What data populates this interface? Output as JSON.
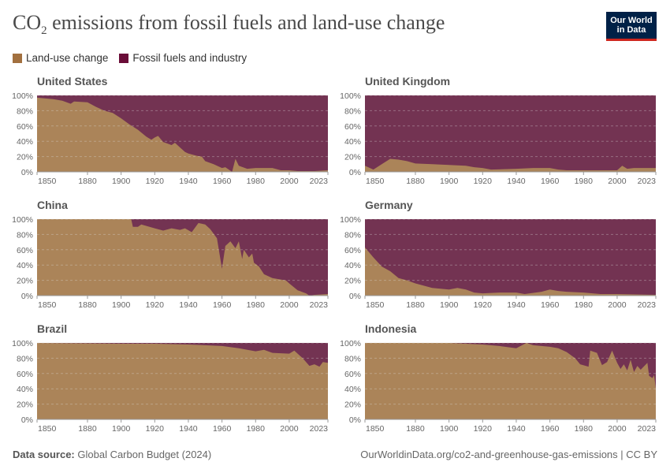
{
  "title_main": "CO",
  "title_sub": "2",
  "title_rest": " emissions from fossil fuels and land-use change",
  "logo": [
    "Our World",
    "in Data"
  ],
  "legend": [
    {
      "label": "Land-use change",
      "color": "#a2703f"
    },
    {
      "label": "Fossil fuels and industry",
      "color": "#6a0d38"
    }
  ],
  "footer": {
    "source_label": "Data source:",
    "source": "Global Carbon Budget (2024)",
    "url": "OurWorldinData.org/co2-and-greenhouse-gas-emissions | CC BY"
  },
  "chart_data": {
    "type": "area",
    "stacked_percent": true,
    "area_colors": {
      "land": "#ab8459",
      "fossil": "#733352"
    },
    "x_ticks": [
      1850,
      1880,
      1900,
      1920,
      1940,
      1960,
      1980,
      2000,
      2023
    ],
    "y_ticks": [
      "0%",
      "20%",
      "40%",
      "60%",
      "80%",
      "100%"
    ],
    "ylim": [
      0,
      100
    ],
    "xlim": [
      1850,
      2023
    ],
    "grid": true,
    "note": "",
    "panels": [
      {
        "title": "United States",
        "land_use_share": [
          [
            1850,
            97
          ],
          [
            1860,
            95
          ],
          [
            1865,
            93
          ],
          [
            1870,
            89
          ],
          [
            1872,
            92
          ],
          [
            1880,
            91
          ],
          [
            1885,
            85
          ],
          [
            1890,
            80
          ],
          [
            1895,
            77
          ],
          [
            1900,
            70
          ],
          [
            1905,
            62
          ],
          [
            1910,
            55
          ],
          [
            1915,
            46
          ],
          [
            1918,
            42
          ],
          [
            1920,
            45
          ],
          [
            1922,
            47
          ],
          [
            1925,
            39
          ],
          [
            1930,
            35
          ],
          [
            1932,
            38
          ],
          [
            1935,
            32
          ],
          [
            1938,
            26
          ],
          [
            1940,
            24
          ],
          [
            1945,
            21
          ],
          [
            1948,
            20
          ],
          [
            1950,
            14
          ],
          [
            1955,
            10
          ],
          [
            1960,
            5
          ],
          [
            1962,
            6
          ],
          [
            1966,
            0
          ],
          [
            1968,
            17
          ],
          [
            1970,
            8
          ],
          [
            1975,
            4
          ],
          [
            1980,
            5
          ],
          [
            1990,
            5
          ],
          [
            1995,
            2
          ],
          [
            2000,
            2
          ],
          [
            2005,
            1
          ],
          [
            2015,
            1
          ],
          [
            2023,
            2
          ]
        ]
      },
      {
        "title": "United Kingdom",
        "land_use_share": [
          [
            1850,
            8
          ],
          [
            1855,
            3
          ],
          [
            1860,
            10
          ],
          [
            1865,
            17
          ],
          [
            1870,
            16
          ],
          [
            1875,
            14
          ],
          [
            1880,
            11
          ],
          [
            1890,
            10
          ],
          [
            1900,
            9
          ],
          [
            1910,
            8
          ],
          [
            1915,
            6
          ],
          [
            1920,
            5
          ],
          [
            1925,
            3
          ],
          [
            1940,
            4
          ],
          [
            1950,
            5
          ],
          [
            1960,
            5
          ],
          [
            1965,
            3
          ],
          [
            1970,
            2
          ],
          [
            1980,
            2
          ],
          [
            2000,
            2
          ],
          [
            2003,
            8
          ],
          [
            2006,
            4
          ],
          [
            2010,
            5
          ],
          [
            2023,
            5
          ]
        ]
      },
      {
        "title": "China",
        "land_use_share": [
          [
            1850,
            100
          ],
          [
            1906,
            100
          ],
          [
            1907,
            90
          ],
          [
            1910,
            90
          ],
          [
            1912,
            93
          ],
          [
            1920,
            88
          ],
          [
            1925,
            85
          ],
          [
            1930,
            88
          ],
          [
            1935,
            86
          ],
          [
            1938,
            88
          ],
          [
            1942,
            83
          ],
          [
            1946,
            95
          ],
          [
            1950,
            93
          ],
          [
            1953,
            87
          ],
          [
            1957,
            75
          ],
          [
            1960,
            35
          ],
          [
            1962,
            65
          ],
          [
            1965,
            71
          ],
          [
            1968,
            62
          ],
          [
            1970,
            71
          ],
          [
            1972,
            48
          ],
          [
            1973,
            60
          ],
          [
            1976,
            50
          ],
          [
            1978,
            55
          ],
          [
            1979,
            43
          ],
          [
            1982,
            38
          ],
          [
            1985,
            28
          ],
          [
            1990,
            23
          ],
          [
            1995,
            21
          ],
          [
            1998,
            20
          ],
          [
            2000,
            16
          ],
          [
            2005,
            7
          ],
          [
            2010,
            3
          ],
          [
            2012,
            0
          ],
          [
            2015,
            1
          ],
          [
            2023,
            2
          ]
        ]
      },
      {
        "title": "Germany",
        "land_use_share": [
          [
            1850,
            63
          ],
          [
            1855,
            50
          ],
          [
            1860,
            38
          ],
          [
            1865,
            32
          ],
          [
            1870,
            23
          ],
          [
            1875,
            20
          ],
          [
            1880,
            16
          ],
          [
            1890,
            10
          ],
          [
            1900,
            8
          ],
          [
            1905,
            10
          ],
          [
            1910,
            8
          ],
          [
            1915,
            4
          ],
          [
            1920,
            3
          ],
          [
            1930,
            4
          ],
          [
            1940,
            4
          ],
          [
            1945,
            2
          ],
          [
            1948,
            3
          ],
          [
            1955,
            5
          ],
          [
            1960,
            8
          ],
          [
            1965,
            6
          ],
          [
            1970,
            5
          ],
          [
            1980,
            4
          ],
          [
            1990,
            2
          ],
          [
            2000,
            2
          ],
          [
            2023,
            1
          ]
        ]
      },
      {
        "title": "Brazil",
        "land_use_share": [
          [
            1850,
            100
          ],
          [
            1900,
            99
          ],
          [
            1920,
            99
          ],
          [
            1940,
            98
          ],
          [
            1960,
            96
          ],
          [
            1970,
            93
          ],
          [
            1980,
            89
          ],
          [
            1985,
            91
          ],
          [
            1990,
            87
          ],
          [
            2000,
            86
          ],
          [
            2003,
            90
          ],
          [
            2008,
            80
          ],
          [
            2012,
            70
          ],
          [
            2015,
            72
          ],
          [
            2018,
            69
          ],
          [
            2020,
            75
          ],
          [
            2023,
            74
          ]
        ]
      },
      {
        "title": "Indonesia",
        "land_use_share": [
          [
            1850,
            100
          ],
          [
            1900,
            100
          ],
          [
            1920,
            98
          ],
          [
            1930,
            96
          ],
          [
            1940,
            93
          ],
          [
            1946,
            100
          ],
          [
            1950,
            97
          ],
          [
            1960,
            95
          ],
          [
            1965,
            93
          ],
          [
            1970,
            88
          ],
          [
            1975,
            80
          ],
          [
            1978,
            72
          ],
          [
            1983,
            69
          ],
          [
            1984,
            90
          ],
          [
            1988,
            87
          ],
          [
            1991,
            71
          ],
          [
            1994,
            75
          ],
          [
            1997,
            90
          ],
          [
            2000,
            74
          ],
          [
            2002,
            66
          ],
          [
            2004,
            72
          ],
          [
            2006,
            64
          ],
          [
            2008,
            78
          ],
          [
            2010,
            62
          ],
          [
            2012,
            70
          ],
          [
            2014,
            65
          ],
          [
            2018,
            74
          ],
          [
            2019,
            57
          ],
          [
            2021,
            54
          ],
          [
            2022,
            58
          ],
          [
            2023,
            40
          ]
        ]
      }
    ]
  }
}
